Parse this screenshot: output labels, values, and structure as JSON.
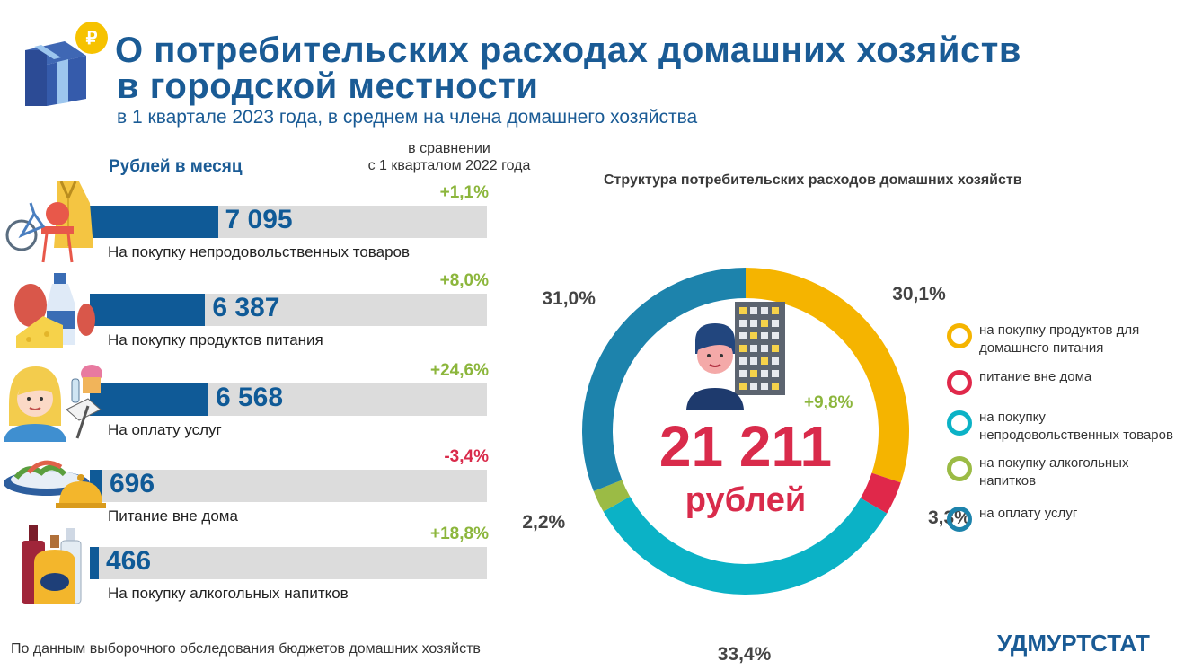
{
  "header": {
    "title_line1": "О потребительских расходах домашних хозяйств",
    "title_line2": "в городской местности",
    "subtitle": "в 1 квартале 2023 года, в среднем на члена домашнего хозяйства"
  },
  "bars_section": {
    "unit_heading": "Рублей в месяц",
    "compare_heading_1": "в сравнении",
    "compare_heading_2": "с 1 кварталом 2022 года"
  },
  "chart_data": [
    {
      "type": "bar",
      "ylabel": "Рублей в месяц",
      "categories": [
        "На покупку непродовольственных товаров",
        "На покупку продуктов питания",
        "На оплату услуг",
        "Питание вне дома",
        "На покупку алкогольных напитков"
      ],
      "values": [
        7095,
        6387,
        6568,
        696,
        466
      ],
      "value_labels": [
        "7 095",
        "6 387",
        "6 568",
        "696",
        "466"
      ],
      "changes": [
        "+1,1%",
        "+8,0%",
        "+24,6%",
        "-3,4%",
        "+18,8%"
      ],
      "change_colors": [
        "#8cb63c",
        "#8cb63c",
        "#8cb63c",
        "#d92b4b",
        "#8cb63c"
      ]
    },
    {
      "type": "pie",
      "title": "Структура потребительских расходов домашних хозяйств",
      "total_value": "21 211",
      "total_unit": "рублей",
      "total_change": "+9,8%",
      "slices": [
        {
          "label": "на покупку продуктов для домашнего питания",
          "value": 30.1,
          "pct_label": "30,1%",
          "color": "#f5b400"
        },
        {
          "label": "питание вне дома",
          "value": 3.3,
          "pct_label": "3,3%",
          "color": "#e0284a"
        },
        {
          "label": "на покупку непродовольственных  товаров",
          "value": 33.4,
          "pct_label": "33,4%",
          "color": "#0bb2c6"
        },
        {
          "label": "на покупку алкогольных напитков",
          "value": 2.2,
          "pct_label": "2,2%",
          "color": "#9bbb45"
        },
        {
          "label": "на оплату услуг",
          "value": 31.0,
          "pct_label": "31,0%",
          "color": "#1d83ac"
        }
      ]
    }
  ],
  "footer": {
    "source": "По данным выборочного обследования бюджетов домашних хозяйств",
    "brand": "УДМУРТСТАТ"
  },
  "icons": [
    "gift-coin-icon",
    "bicycle-chair-coat-icon",
    "food-products-icon",
    "services-person-icon",
    "dining-plate-icon",
    "alcohol-bottles-icon",
    "person-building-icon"
  ]
}
